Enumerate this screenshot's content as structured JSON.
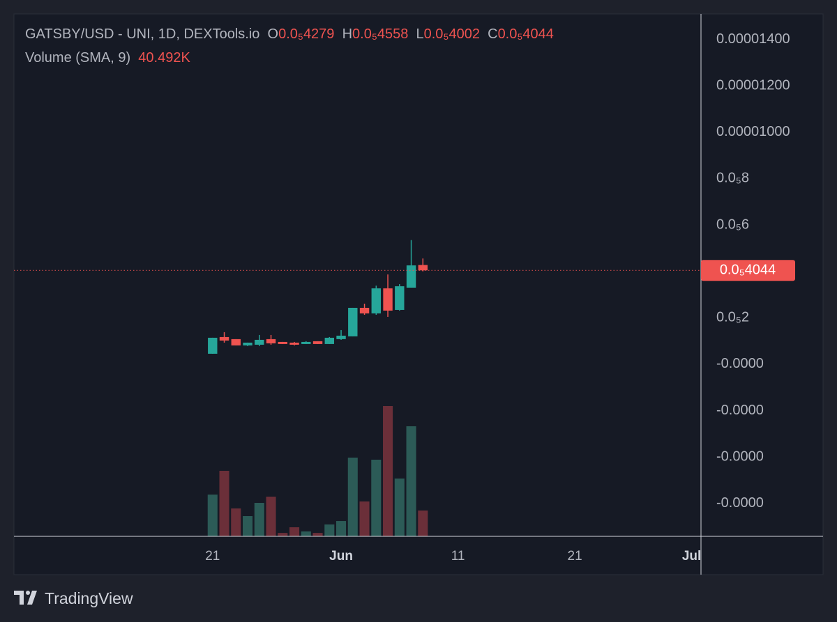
{
  "chart_data": {
    "type": "candlestick",
    "title": "GATSBY/USD - UNI, 1D, DEXTools.io",
    "ohlc_names": [
      "O",
      "H",
      "L",
      "C"
    ],
    "ohlc_value_labels": [
      "0.0₅4279",
      "0.0₅4558",
      "0.0₅4002",
      "0.0₅4044"
    ],
    "last_price_label": "0.0₅4044",
    "x": [
      0,
      1,
      2,
      3,
      4,
      5,
      6,
      7,
      8,
      9,
      10,
      11,
      12,
      13,
      14,
      15,
      16,
      17,
      18
    ],
    "open": [
      4.5e-07,
      1.17e-06,
      1.08e-06,
      8.1e-07,
      8.4e-07,
      1.08e-06,
      9.6e-07,
      9.3e-07,
      8.7e-07,
      9.9e-07,
      8.7e-07,
      1.08e-06,
      1.2e-06,
      2.43e-06,
      2.19e-06,
      3.27e-06,
      2.34e-06,
      3.3e-06,
      4.279e-06
    ],
    "high": [
      1.14e-06,
      1.38e-06,
      1.08e-06,
      9.3e-07,
      1.26e-06,
      1.26e-06,
      9.6e-07,
      9.6e-07,
      9.9e-07,
      9.9e-07,
      1.17e-06,
      1.47e-06,
      2.43e-06,
      2.61e-06,
      3.39e-06,
      3.87e-06,
      3.45e-06,
      5.35e-06,
      4.558e-06
    ],
    "low": [
      4.5e-07,
      9.3e-07,
      8.1e-07,
      7.8e-07,
      7.8e-07,
      8.4e-07,
      8.7e-07,
      8.1e-07,
      8.7e-07,
      8.7e-07,
      8.7e-07,
      1.05e-06,
      1.2e-06,
      2.13e-06,
      2.13e-06,
      2.04e-06,
      2.31e-06,
      3.3e-06,
      4.002e-06
    ],
    "close": [
      1.14e-06,
      1.02e-06,
      8.1e-07,
      9.3e-07,
      1.05e-06,
      9e-07,
      8.7e-07,
      8.4e-07,
      9.6e-07,
      8.7e-07,
      1.14e-06,
      1.23e-06,
      2.43e-06,
      2.19e-06,
      3.27e-06,
      2.31e-06,
      3.36e-06,
      4.26e-06,
      4.044e-06
    ],
    "up_color": "#26a69a",
    "down_color": "#ef5350",
    "volume": {
      "name": "Volume (SMA, 9)",
      "sma_label": "40.492K",
      "values": [
        28100,
        44100,
        18800,
        13600,
        22500,
        26700,
        2300,
        6100,
        3300,
        2300,
        8000,
        10300,
        53000,
        23500,
        51600,
        87700,
        38900,
        74100,
        17400
      ],
      "up_color": "#2c5b57",
      "down_color": "#6b2f39"
    },
    "xlim": [
      -17,
      41.8
    ],
    "xticks": [
      {
        "value": 0,
        "label": "21"
      },
      {
        "value": 11,
        "label": "Jun"
      },
      {
        "value": 21,
        "label": "11"
      },
      {
        "value": 31,
        "label": "21"
      },
      {
        "value": 41,
        "label": "Jul"
      }
    ],
    "ylim": [
      -7.42e-06,
      1.51e-05
    ],
    "yticks": [
      {
        "value": 1.4e-05,
        "label": "0.00001400"
      },
      {
        "value": 1.2e-05,
        "label": "0.00001200"
      },
      {
        "value": 1e-05,
        "label": "0.00001000"
      },
      {
        "value": 8e-06,
        "label": "0.0₅8"
      },
      {
        "value": 6e-06,
        "label": "0.0₅6"
      },
      {
        "value": 2e-06,
        "label": "0.0₅2"
      },
      {
        "value": 0,
        "label": "-0.0000"
      },
      {
        "value": -2e-06,
        "label": "-0.0000"
      },
      {
        "value": -4e-06,
        "label": "-0.0000"
      },
      {
        "value": -6e-06,
        "label": "-0.0000"
      }
    ],
    "grid": true
  },
  "branding": "TradingView"
}
